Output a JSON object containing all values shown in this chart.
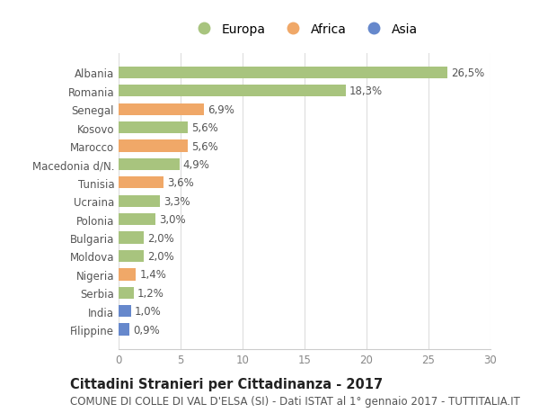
{
  "countries": [
    "Albania",
    "Romania",
    "Senegal",
    "Kosovo",
    "Marocco",
    "Macedonia d/N.",
    "Tunisia",
    "Ucraina",
    "Polonia",
    "Bulgaria",
    "Moldova",
    "Nigeria",
    "Serbia",
    "India",
    "Filippine"
  ],
  "values": [
    26.5,
    18.3,
    6.9,
    5.6,
    5.6,
    4.9,
    3.6,
    3.3,
    3.0,
    2.0,
    2.0,
    1.4,
    1.2,
    1.0,
    0.9
  ],
  "labels": [
    "26,5%",
    "18,3%",
    "6,9%",
    "5,6%",
    "5,6%",
    "4,9%",
    "3,6%",
    "3,3%",
    "3,0%",
    "2,0%",
    "2,0%",
    "1,4%",
    "1,2%",
    "1,0%",
    "0,9%"
  ],
  "continents": [
    "Europa",
    "Europa",
    "Africa",
    "Europa",
    "Africa",
    "Europa",
    "Africa",
    "Europa",
    "Europa",
    "Europa",
    "Europa",
    "Africa",
    "Europa",
    "Asia",
    "Asia"
  ],
  "colors": {
    "Europa": "#a8c47e",
    "Africa": "#f0a868",
    "Asia": "#6688cc"
  },
  "xlim": [
    0,
    30
  ],
  "xticks": [
    0,
    5,
    10,
    15,
    20,
    25,
    30
  ],
  "title": "Cittadini Stranieri per Cittadinanza - 2017",
  "subtitle": "COMUNE DI COLLE DI VAL D'ELSA (SI) - Dati ISTAT al 1° gennaio 2017 - TUTTITALIA.IT",
  "bg_color": "#ffffff",
  "grid_color": "#dddddd",
  "bar_height": 0.65,
  "label_fontsize": 8.5,
  "tick_fontsize": 8.5,
  "title_fontsize": 10.5,
  "subtitle_fontsize": 8.5
}
